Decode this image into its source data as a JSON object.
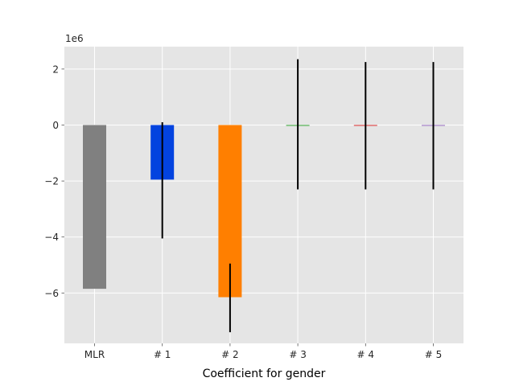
{
  "chart_data": {
    "type": "bar",
    "categories": [
      "MLR",
      "# 1",
      "# 2",
      "# 3",
      "# 4",
      "# 5"
    ],
    "values": [
      -5.85,
      -1.95,
      -6.15,
      0.0,
      0.0,
      0.0
    ],
    "error_bars": [
      {
        "low": null,
        "high": null
      },
      {
        "low": -4.05,
        "high": 0.1
      },
      {
        "low": -7.4,
        "high": -4.95
      },
      {
        "low": -2.3,
        "high": 2.35
      },
      {
        "low": -2.3,
        "high": 2.25
      },
      {
        "low": -2.3,
        "high": 2.25
      }
    ],
    "bar_colors": [
      "#808080",
      "#0343df",
      "#ff7f00",
      "#2ca02c",
      "#d62728",
      "#9467bd"
    ],
    "error_color": "#000000",
    "xlabel": "Coefficient for gender",
    "ylabel": "",
    "y_offset_label": "1e6",
    "ylim": [
      -7.8,
      2.8
    ],
    "yticks": [
      2,
      0,
      -2,
      -4,
      -6
    ],
    "ytick_labels": [
      "2",
      "0",
      "−2",
      "−4",
      "−6"
    ],
    "grid": true,
    "style": "ggplot",
    "background_color": "#e5e5e5"
  }
}
